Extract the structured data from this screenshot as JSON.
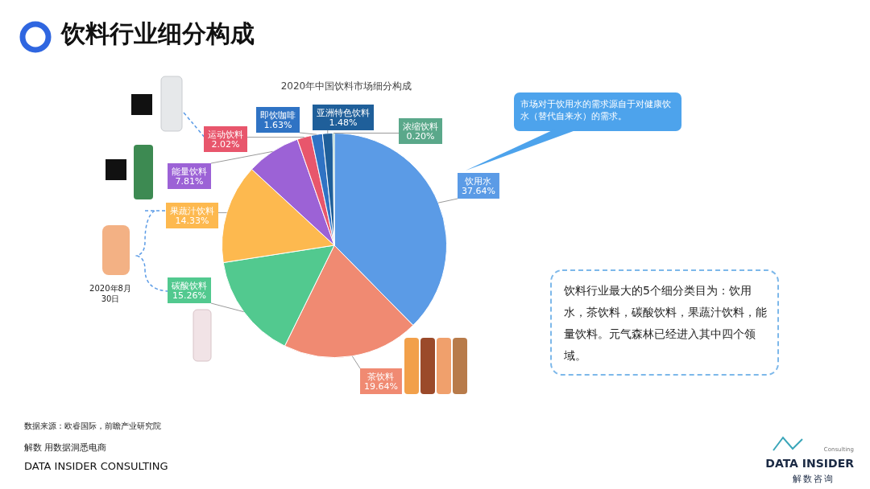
{
  "header": {
    "title": "饮料行业细分构成"
  },
  "chart_data": {
    "type": "pie",
    "title": "2020年中国饮料市场细分构成",
    "categories": [
      "饮用水",
      "茶饮料",
      "碳酸饮料",
      "果蔬汁饮料",
      "能量饮料",
      "运动饮料",
      "即饮咖啡",
      "亚洲特色饮料",
      "浓缩饮料"
    ],
    "values": [
      37.64,
      19.64,
      15.26,
      14.33,
      7.81,
      2.02,
      1.63,
      1.48,
      0.2
    ],
    "value_labels": [
      "37.64%",
      "19.64%",
      "15.26%",
      "14.33%",
      "7.81%",
      "2.02%",
      "1.63%",
      "1.48%",
      "0.20%"
    ],
    "colors": [
      "#5b9be6",
      "#f08a72",
      "#52c98f",
      "#fdb94f",
      "#9c62d6",
      "#e8566c",
      "#2f73c4",
      "#1f5f9a",
      "#5aa88a"
    ],
    "data_labels": true
  },
  "callout": "市场对于饮用水的需求源自于对健康饮水（替代自来水）的需求。",
  "summary": "饮料行业最大的5个细分类目为：饮用水，茶饮料，碳酸饮料，果蔬汁饮料，能量饮料。元气森林已经进入其中四个领域。",
  "product_note": "2020年8月30日",
  "footer": {
    "source": "数据来源：欧睿国际，前瞻产业研究院",
    "tagline": "解数 用数据洞悉电商",
    "company": "DATA INSIDER CONSULTING"
  },
  "logo": {
    "name": "DATA INSIDER",
    "sub": "Consulting",
    "cn": "解数咨询"
  }
}
